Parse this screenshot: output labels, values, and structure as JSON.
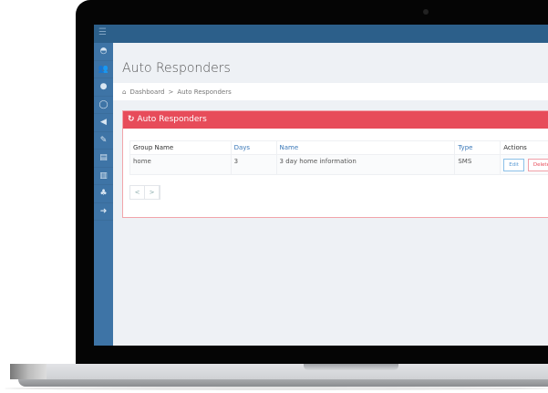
{
  "header": {
    "menu_icon": "hamburger-icon"
  },
  "sidebar": {
    "items": [
      {
        "icon": "dashboard-icon",
        "glyph": "◓"
      },
      {
        "icon": "users-icon",
        "glyph": "👥"
      },
      {
        "icon": "user-icon",
        "glyph": "●"
      },
      {
        "icon": "chat-icon",
        "glyph": "◯"
      },
      {
        "icon": "megaphone-icon",
        "glyph": "◀"
      },
      {
        "icon": "wrench-icon",
        "glyph": "✎"
      },
      {
        "icon": "document-icon",
        "glyph": "▤"
      },
      {
        "icon": "bar-chart-icon",
        "glyph": "▥"
      },
      {
        "icon": "sitemap-icon",
        "glyph": "♣"
      },
      {
        "icon": "logout-icon",
        "glyph": "➜"
      }
    ]
  },
  "page": {
    "title": "Auto Responders"
  },
  "breadcrumb": {
    "home_icon": "⌂",
    "home": "Dashboard",
    "sep": ">",
    "current": "Auto Responders"
  },
  "panel": {
    "title": "Auto Responders",
    "icon": "refresh-icon",
    "icon_glyph": "↻"
  },
  "table": {
    "columns": [
      "Group Name",
      "Days",
      "Name",
      "Type",
      "Actions"
    ],
    "rows": [
      {
        "group": "home",
        "days": "3",
        "name": "3 day home information",
        "type": "SMS",
        "edit": "Edit",
        "delete": "Delete"
      }
    ]
  },
  "pagination": {
    "prev": "<",
    "next": ">"
  },
  "colors": {
    "topbar": "#2c5f8a",
    "sidebar": "#3e74a6",
    "panel_header": "#e74c5a"
  }
}
